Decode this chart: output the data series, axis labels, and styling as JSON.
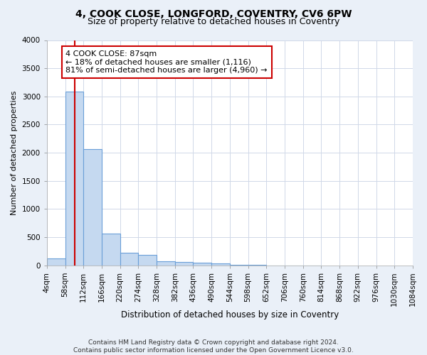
{
  "title1": "4, COOK CLOSE, LONGFORD, COVENTRY, CV6 6PW",
  "title2": "Size of property relative to detached houses in Coventry",
  "xlabel": "Distribution of detached houses by size in Coventry",
  "ylabel": "Number of detached properties",
  "bin_edges": [
    4,
    58,
    112,
    166,
    220,
    274,
    328,
    382,
    436,
    490,
    544,
    598,
    652,
    706,
    760,
    814,
    868,
    922,
    976,
    1030,
    1084
  ],
  "bar_heights": [
    120,
    3080,
    2060,
    570,
    220,
    190,
    75,
    60,
    50,
    35,
    8,
    4,
    2,
    1,
    1,
    0,
    0,
    0,
    0,
    0
  ],
  "bar_color": "#c5d9f0",
  "bar_edgecolor": "#6a9fd8",
  "property_size": 87,
  "property_line_color": "#cc0000",
  "annotation_text": "4 COOK CLOSE: 87sqm\n← 18% of detached houses are smaller (1,116)\n81% of semi-detached houses are larger (4,960) →",
  "annotation_box_facecolor": "#ffffff",
  "annotation_box_edgecolor": "#cc0000",
  "ylim": [
    0,
    4000
  ],
  "yticks": [
    0,
    500,
    1000,
    1500,
    2000,
    2500,
    3000,
    3500,
    4000
  ],
  "plot_bg_color": "#ffffff",
  "fig_bg_color": "#eaf0f8",
  "grid_color": "#d0d8e8",
  "footnote": "Contains HM Land Registry data © Crown copyright and database right 2024.\nContains public sector information licensed under the Open Government Licence v3.0.",
  "title1_fontsize": 10,
  "title2_fontsize": 9,
  "xlabel_fontsize": 8.5,
  "ylabel_fontsize": 8,
  "tick_fontsize": 7.5,
  "annotation_fontsize": 8,
  "footnote_fontsize": 6.5
}
